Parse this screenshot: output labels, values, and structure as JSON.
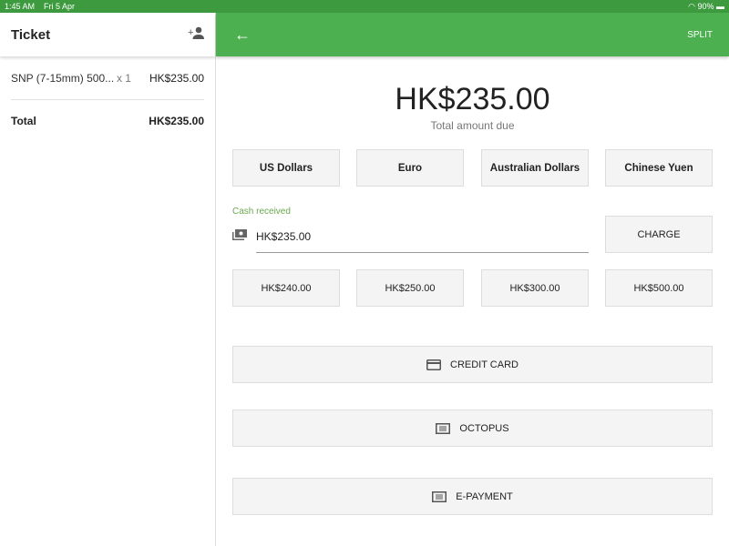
{
  "status": {
    "time": "1:45 AM",
    "date": "Fri 5 Apr",
    "battery": "90%"
  },
  "ticket": {
    "title": "Ticket",
    "items": [
      {
        "name": "SNP (7-15mm) 500...",
        "qty": "x 1",
        "price": "HK$235.00"
      }
    ],
    "total_label": "Total",
    "total": "HK$235.00"
  },
  "header": {
    "split": "SPLIT"
  },
  "payment": {
    "amount": "HK$235.00",
    "amount_label": "Total amount due",
    "currencies": [
      "US Dollars",
      "Euro",
      "Australian Dollars",
      "Chinese Yuen"
    ],
    "cash_label": "Cash received",
    "cash_value": "HK$235.00",
    "charge": "CHARGE",
    "quick": [
      "HK$240.00",
      "HK$250.00",
      "HK$300.00",
      "HK$500.00"
    ],
    "methods": [
      {
        "label": "CREDIT CARD",
        "icon": "credit-card-icon"
      },
      {
        "label": "OCTOPUS",
        "icon": "receipt-icon"
      },
      {
        "label": "E-PAYMENT",
        "icon": "receipt-icon"
      }
    ]
  },
  "colors": {
    "accent": "#4caf50",
    "status": "#3d9a3f"
  }
}
